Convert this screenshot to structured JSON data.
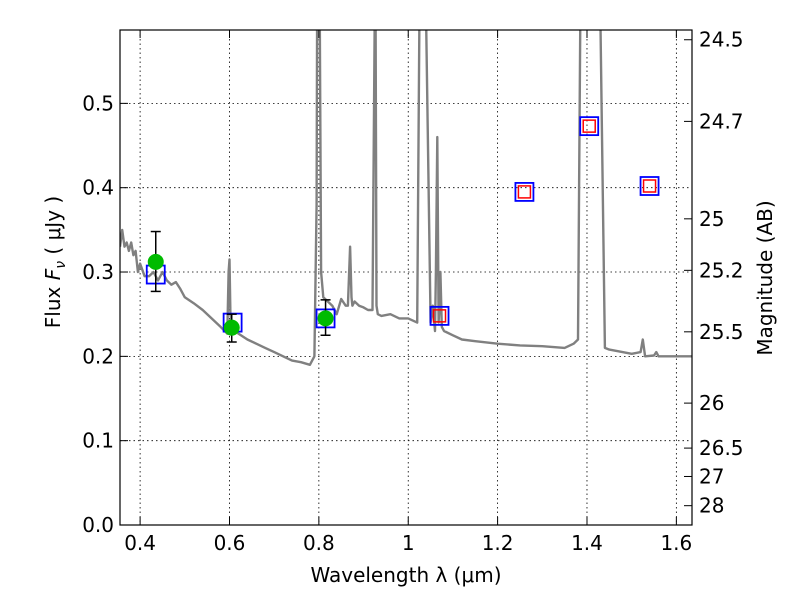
{
  "chart_data": {
    "type": "scatter",
    "xlabel": "Wavelength  λ (μm)",
    "ylabel": "Flux  F_ν  ( μJy )",
    "ylabel_right": "Magnitude (AB)",
    "xlim": [
      0.355,
      1.635
    ],
    "ylim": [
      0.0,
      0.587
    ],
    "grid": true,
    "x_ticks": [
      0.4,
      0.6,
      0.8,
      1.0,
      1.2,
      1.4,
      1.6
    ],
    "x_tick_labels": [
      "0.4",
      "0.6",
      "0.8",
      "1",
      "1.2",
      "1.4",
      "1.6"
    ],
    "y_ticks": [
      0.0,
      0.1,
      0.2,
      0.3,
      0.4,
      0.5
    ],
    "y_tick_labels": [
      "0.0",
      "0.1",
      "0.2",
      "0.3",
      "0.4",
      "0.5"
    ],
    "right_ticks": [
      {
        "label": "24.5",
        "value": 24.5
      },
      {
        "label": "24.7",
        "value": 24.7
      },
      {
        "label": "25",
        "value": 25.0
      },
      {
        "label": "25.2",
        "value": 25.2
      },
      {
        "label": "25.5",
        "value": 25.5
      },
      {
        "label": "26",
        "value": 26.0
      },
      {
        "label": "26.5",
        "value": 26.5
      },
      {
        "label": "27",
        "value": 27.0
      },
      {
        "label": "28",
        "value": 28.0
      }
    ],
    "colors": {
      "model": "#808080",
      "observed": "#00bb00",
      "model_box": "#0000ff",
      "upper_box": "#ff0000",
      "errorbar": "#000000"
    },
    "series": [
      {
        "type": "line",
        "x": [
          0.355,
          0.36,
          0.365,
          0.37,
          0.375,
          0.38,
          0.385,
          0.39,
          0.395,
          0.4,
          0.41,
          0.42,
          0.43,
          0.44,
          0.45,
          0.46,
          0.47,
          0.48,
          0.49,
          0.5,
          0.52,
          0.54,
          0.56,
          0.58,
          0.595,
          0.598,
          0.6,
          0.602,
          0.605,
          0.61,
          0.62,
          0.64,
          0.66,
          0.68,
          0.7,
          0.72,
          0.74,
          0.76,
          0.78,
          0.79,
          0.795,
          0.796,
          0.798,
          0.8,
          0.802,
          0.805,
          0.81,
          0.82,
          0.83,
          0.84,
          0.85,
          0.86,
          0.865,
          0.87,
          0.873,
          0.875,
          0.88,
          0.89,
          0.9,
          0.91,
          0.92,
          0.925,
          0.927,
          0.929,
          0.932,
          0.94,
          0.96,
          0.98,
          1.0,
          1.02,
          1.025,
          1.03,
          1.04,
          1.05,
          1.055,
          1.06,
          1.062,
          1.065,
          1.068,
          1.07,
          1.072,
          1.075,
          1.08,
          1.1,
          1.12,
          1.15,
          1.2,
          1.25,
          1.3,
          1.35,
          1.37,
          1.38,
          1.385,
          1.39,
          1.395,
          1.4,
          1.405,
          1.41,
          1.415,
          1.42,
          1.425,
          1.43,
          1.44,
          1.45,
          1.5,
          1.52,
          1.525,
          1.53,
          1.55,
          1.555,
          1.56,
          1.58,
          1.6,
          1.635
        ],
        "y": [
          0.33,
          0.35,
          0.33,
          0.335,
          0.325,
          0.335,
          0.32,
          0.325,
          0.3,
          0.31,
          0.295,
          0.295,
          0.3,
          0.29,
          0.3,
          0.29,
          0.285,
          0.288,
          0.28,
          0.27,
          0.263,
          0.255,
          0.245,
          0.235,
          0.227,
          0.3,
          0.315,
          0.25,
          0.24,
          0.234,
          0.227,
          0.22,
          0.215,
          0.21,
          0.205,
          0.2,
          0.195,
          0.193,
          0.19,
          0.2,
          0.38,
          0.6,
          0.6,
          0.6,
          0.6,
          0.3,
          0.27,
          0.265,
          0.26,
          0.25,
          0.268,
          0.26,
          0.26,
          0.33,
          0.27,
          0.26,
          0.265,
          0.26,
          0.258,
          0.255,
          0.255,
          0.6,
          0.6,
          0.26,
          0.25,
          0.248,
          0.25,
          0.245,
          0.245,
          0.24,
          0.6,
          0.6,
          0.6,
          0.24,
          0.26,
          0.23,
          0.3,
          0.46,
          0.24,
          0.26,
          0.3,
          0.235,
          0.23,
          0.225,
          0.22,
          0.218,
          0.215,
          0.213,
          0.212,
          0.21,
          0.215,
          0.22,
          0.6,
          0.6,
          0.6,
          0.6,
          0.6,
          0.6,
          0.6,
          0.6,
          0.6,
          0.6,
          0.21,
          0.208,
          0.203,
          0.205,
          0.22,
          0.2,
          0.201,
          0.205,
          0.2,
          0.2,
          0.2,
          0.2
        ]
      },
      {
        "type": "errorbar_points",
        "x": [
          0.435,
          0.605,
          0.815
        ],
        "y": [
          0.312,
          0.234,
          0.245
        ],
        "yerr_low": [
          0.035,
          0.017,
          0.02
        ],
        "yerr_high": [
          0.036,
          0.016,
          0.022
        ]
      },
      {
        "type": "square_markers",
        "x": [
          0.435,
          0.607,
          0.815,
          1.07,
          1.26,
          1.405,
          1.54
        ],
        "y": [
          0.297,
          0.24,
          0.245,
          0.248,
          0.395,
          0.473,
          0.402
        ]
      },
      {
        "type": "small_square_markers",
        "x": [
          1.07,
          1.26,
          1.405,
          1.54
        ],
        "y": [
          0.248,
          0.395,
          0.473,
          0.402
        ]
      }
    ]
  }
}
